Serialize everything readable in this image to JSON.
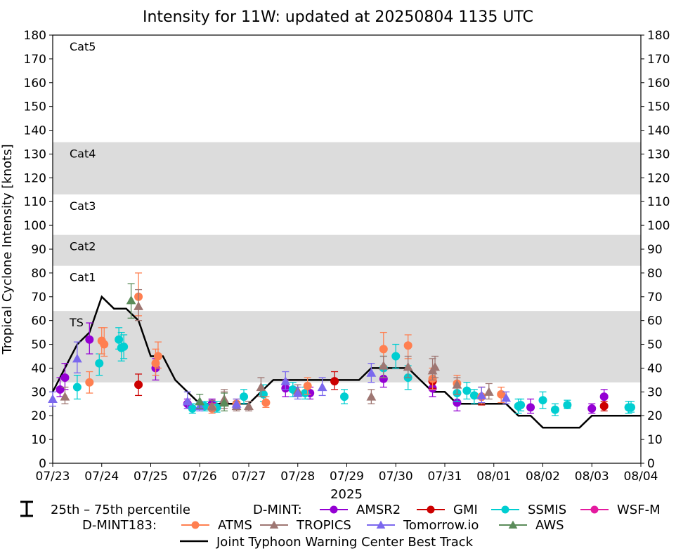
{
  "chart_data": {
    "type": "scatter",
    "title": "Intensity for 11W: updated at 20250804 1135 UTC",
    "ylabel": "Tropical Cyclone Intensity [knots]",
    "xlabel": "2025",
    "ylim": [
      0,
      180
    ],
    "xlim_days": [
      23.0,
      35.0
    ],
    "y_ticks": [
      0,
      10,
      20,
      30,
      40,
      50,
      60,
      70,
      80,
      90,
      100,
      110,
      120,
      130,
      140,
      150,
      160,
      170,
      180
    ],
    "x_ticks": [
      {
        "day": 23,
        "label": "07/23"
      },
      {
        "day": 24,
        "label": "07/24"
      },
      {
        "day": 25,
        "label": "07/25"
      },
      {
        "day": 26,
        "label": "07/26"
      },
      {
        "day": 27,
        "label": "07/27"
      },
      {
        "day": 28,
        "label": "07/28"
      },
      {
        "day": 29,
        "label": "07/29"
      },
      {
        "day": 30,
        "label": "07/30"
      },
      {
        "day": 31,
        "label": "07/31"
      },
      {
        "day": 32,
        "label": "08/01"
      },
      {
        "day": 33,
        "label": "08/02"
      },
      {
        "day": 34,
        "label": "08/03"
      },
      {
        "day": 35,
        "label": "08/04"
      }
    ],
    "category_bands": [
      {
        "label": "TS",
        "from": 34,
        "to": 64,
        "shaded": true
      },
      {
        "label": "Cat1",
        "from": 64,
        "to": 83,
        "shaded": false
      },
      {
        "label": "Cat2",
        "from": 83,
        "to": 96,
        "shaded": true
      },
      {
        "label": "Cat3",
        "from": 96,
        "to": 113,
        "shaded": false
      },
      {
        "label": "Cat4",
        "from": 113,
        "to": 135,
        "shaded": true
      },
      {
        "label": "Cat5",
        "from": 135,
        "to": 180,
        "shaded": false
      }
    ],
    "best_track": {
      "name": "Joint Typhoon Warning Center Best Track",
      "color": "#000000",
      "points": [
        [
          23.0,
          30
        ],
        [
          23.25,
          40
        ],
        [
          23.5,
          50
        ],
        [
          23.75,
          55
        ],
        [
          24.0,
          70
        ],
        [
          24.25,
          65
        ],
        [
          24.5,
          65
        ],
        [
          24.75,
          60
        ],
        [
          25.0,
          45
        ],
        [
          25.25,
          45
        ],
        [
          25.5,
          35
        ],
        [
          25.75,
          30
        ],
        [
          26.0,
          25
        ],
        [
          26.25,
          25
        ],
        [
          26.5,
          25
        ],
        [
          26.75,
          25
        ],
        [
          27.0,
          25
        ],
        [
          27.25,
          30
        ],
        [
          27.5,
          35
        ],
        [
          27.75,
          35
        ],
        [
          28.0,
          35
        ],
        [
          28.25,
          35
        ],
        [
          28.5,
          35
        ],
        [
          28.75,
          35
        ],
        [
          29.0,
          35
        ],
        [
          29.25,
          35
        ],
        [
          29.5,
          40
        ],
        [
          29.75,
          40
        ],
        [
          30.0,
          40
        ],
        [
          30.25,
          40
        ],
        [
          30.5,
          35
        ],
        [
          30.75,
          30
        ],
        [
          31.0,
          30
        ],
        [
          31.25,
          25
        ],
        [
          31.5,
          25
        ],
        [
          31.75,
          25
        ],
        [
          32.0,
          25
        ],
        [
          32.25,
          25
        ],
        [
          32.5,
          20
        ],
        [
          32.75,
          20
        ],
        [
          33.0,
          15
        ],
        [
          33.25,
          15
        ],
        [
          33.5,
          15
        ],
        [
          33.75,
          15
        ],
        [
          34.0,
          20
        ],
        [
          34.25,
          20
        ],
        [
          34.5,
          20
        ],
        [
          34.75,
          20
        ],
        [
          35.0,
          20
        ]
      ]
    },
    "series": [
      {
        "name": "AMSR2",
        "group": "D-MINT",
        "color": "#9400D3",
        "marker": "circle",
        "points": [
          [
            23.15,
            31,
            28,
            36
          ],
          [
            23.25,
            36,
            31,
            42
          ],
          [
            23.75,
            52,
            46,
            59
          ],
          [
            25.1,
            40,
            35,
            44
          ],
          [
            25.75,
            25,
            23,
            27
          ],
          [
            26.25,
            25,
            23,
            27
          ],
          [
            27.75,
            31.5,
            28,
            35
          ],
          [
            28.25,
            29.5,
            27,
            32
          ],
          [
            29.75,
            35.5,
            32,
            39
          ],
          [
            30.75,
            31.5,
            28,
            35
          ],
          [
            31.25,
            25.5,
            22,
            29
          ],
          [
            32.75,
            23.5,
            21,
            27
          ],
          [
            34.0,
            23,
            21,
            25
          ],
          [
            34.25,
            28,
            25,
            31
          ]
        ]
      },
      {
        "name": "GMI",
        "group": "D-MINT",
        "color": "#CC0000",
        "marker": "circle",
        "points": [
          [
            24.75,
            33,
            28.5,
            37.5
          ],
          [
            28.75,
            34.5,
            31,
            38.5
          ],
          [
            30.75,
            34.5,
            31.5,
            38.5
          ],
          [
            31.75,
            28,
            24.5,
            32
          ],
          [
            34.25,
            24,
            22,
            26
          ]
        ]
      },
      {
        "name": "SSMIS",
        "group": "D-MINT",
        "color": "#00CED1",
        "marker": "circle",
        "points": [
          [
            23.5,
            32,
            27,
            37
          ],
          [
            23.95,
            42,
            37,
            46
          ],
          [
            24.35,
            52,
            48,
            57
          ],
          [
            24.4,
            48.5,
            43,
            55
          ],
          [
            24.45,
            49,
            44,
            54
          ],
          [
            25.85,
            23,
            21,
            25
          ],
          [
            26.1,
            24,
            22,
            26
          ],
          [
            26.35,
            23.5,
            21.5,
            26
          ],
          [
            26.9,
            28,
            25,
            31
          ],
          [
            27.3,
            29,
            26,
            33
          ],
          [
            27.9,
            31,
            28,
            34
          ],
          [
            28.15,
            29.5,
            27,
            32
          ],
          [
            28.95,
            28,
            25,
            31
          ],
          [
            29.75,
            40,
            36,
            45
          ],
          [
            30.0,
            45,
            40,
            50
          ],
          [
            30.25,
            36,
            31,
            41
          ],
          [
            31.25,
            29.5,
            26,
            33
          ],
          [
            31.45,
            30.5,
            27,
            34
          ],
          [
            31.6,
            28.5,
            25,
            31
          ],
          [
            32.5,
            24,
            21,
            27
          ],
          [
            32.55,
            24.5,
            22,
            27
          ],
          [
            33.0,
            26.5,
            23,
            30
          ],
          [
            33.25,
            22.5,
            20,
            25
          ],
          [
            33.5,
            24.5,
            23,
            26.5
          ],
          [
            34.75,
            23.5,
            21,
            26
          ],
          [
            34.8,
            23.5,
            21.5,
            26
          ]
        ]
      },
      {
        "name": "WSF-M",
        "group": "D-MINT",
        "color": "#E41A9F",
        "marker": "circle",
        "points": []
      },
      {
        "name": "ATMS",
        "group": "D-MINT183",
        "color": "#FF7F50",
        "marker": "circle",
        "points": [
          [
            23.75,
            34,
            29.5,
            38.5
          ],
          [
            24.0,
            51.5,
            46,
            57
          ],
          [
            24.05,
            50,
            45,
            57
          ],
          [
            24.75,
            70,
            62,
            80
          ],
          [
            25.1,
            42,
            37,
            48
          ],
          [
            25.15,
            45,
            40,
            51
          ],
          [
            26.25,
            23,
            21,
            25
          ],
          [
            26.75,
            25,
            23,
            27
          ],
          [
            27.35,
            25.5,
            23.5,
            28
          ],
          [
            28.2,
            32.5,
            29,
            36
          ],
          [
            29.75,
            48,
            41,
            55
          ],
          [
            30.25,
            49.5,
            44,
            54
          ],
          [
            30.75,
            35.5,
            31,
            40
          ],
          [
            31.25,
            33.5,
            29,
            37
          ],
          [
            31.75,
            28,
            25,
            32
          ],
          [
            32.15,
            29,
            25.5,
            32
          ]
        ]
      },
      {
        "name": "TROPICS",
        "group": "D-MINT183",
        "color": "#9E7672",
        "marker": "triangle",
        "points": [
          [
            23.25,
            28,
            25,
            32
          ],
          [
            24.75,
            66,
            60,
            73
          ],
          [
            26.25,
            24,
            22,
            26.5
          ],
          [
            26.5,
            27,
            24,
            31
          ],
          [
            26.75,
            24,
            22,
            26
          ],
          [
            27.0,
            24,
            22,
            26
          ],
          [
            27.25,
            32,
            28,
            36
          ],
          [
            28.0,
            30.5,
            28,
            33
          ],
          [
            29.5,
            28,
            25,
            31
          ],
          [
            29.75,
            41,
            36,
            45
          ],
          [
            30.25,
            40.5,
            36,
            45
          ],
          [
            30.75,
            39,
            35,
            44
          ],
          [
            30.8,
            40.5,
            36,
            45
          ],
          [
            31.25,
            33,
            29,
            36
          ],
          [
            31.9,
            30,
            27,
            33.5
          ],
          [
            26.5,
            26,
            23,
            30
          ]
        ]
      },
      {
        "name": "Tomorrow.io",
        "group": "D-MINT183",
        "color": "#7B68EE",
        "marker": "triangle",
        "points": [
          [
            23.0,
            27,
            24,
            30
          ],
          [
            23.5,
            44,
            38,
            51
          ],
          [
            25.75,
            26,
            23,
            30
          ],
          [
            26.0,
            24,
            22,
            26
          ],
          [
            26.75,
            25,
            23,
            27
          ],
          [
            27.75,
            34.5,
            31,
            38.5
          ],
          [
            28.0,
            29.5,
            27,
            32
          ],
          [
            28.5,
            32,
            28.5,
            36
          ],
          [
            29.5,
            38,
            34,
            42
          ],
          [
            31.75,
            28.5,
            25.5,
            32
          ],
          [
            32.25,
            27.5,
            25,
            30
          ]
        ]
      },
      {
        "name": "AWS",
        "group": "D-MINT183",
        "color": "#5B8C5A",
        "marker": "triangle",
        "points": [
          [
            24.6,
            68.5,
            61,
            75.5
          ],
          [
            26.5,
            25.5,
            22,
            29.5
          ],
          [
            26.0,
            26,
            23,
            29
          ]
        ]
      }
    ],
    "legend": {
      "percentile_label": "25th – 75th percentile",
      "group1_label": "D-MINT:",
      "group2_label": "D-MINT183:"
    }
  }
}
